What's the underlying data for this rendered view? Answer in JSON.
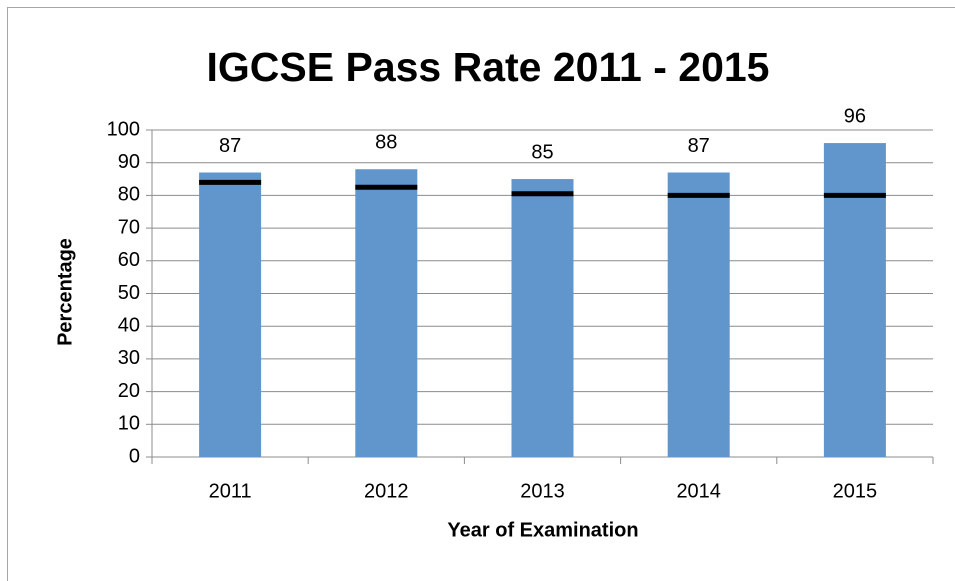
{
  "chart_data": {
    "type": "bar",
    "title": "IGCSE Pass Rate 2011 - 2015",
    "x_label": "Year of Examination",
    "y_label": "Percentage",
    "categories": [
      "2011",
      "2012",
      "2013",
      "2014",
      "2015"
    ],
    "series": [
      {
        "type": "bar",
        "color": "#6096cb",
        "values": [
          87,
          88,
          85,
          87,
          96
        ]
      },
      {
        "type": "marker",
        "color": "#000000",
        "values": [
          84,
          82.5,
          80.5,
          80,
          80
        ]
      }
    ],
    "ylim": [
      0,
      100
    ],
    "yticks": [
      0,
      10,
      20,
      30,
      40,
      50,
      60,
      70,
      80,
      90,
      100
    ],
    "grid": true
  }
}
